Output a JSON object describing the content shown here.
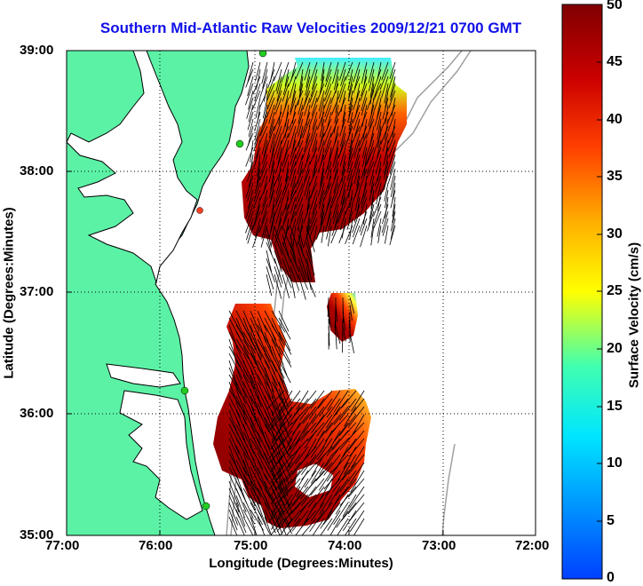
{
  "title": "Southern Mid-Atlantic Raw Velocities 2009/12/21 0700 GMT",
  "x_axis": {
    "label": "Longitude (Degrees:Minutes)",
    "ticks": [
      "77:00",
      "76:00",
      "75:00",
      "74:00",
      "73:00",
      "72:00"
    ]
  },
  "y_axis": {
    "label": "Latitude (Degrees:Minutes)",
    "ticks": [
      "39:00",
      "38:00",
      "37:00",
      "36:00",
      "35:00"
    ]
  },
  "colorbar": {
    "label": "Surface Velocity (cm/s)",
    "ticks": [
      "50",
      "45",
      "40",
      "35",
      "30",
      "25",
      "20",
      "15",
      "10",
      "5",
      "0"
    ],
    "range": [
      0,
      50
    ],
    "colormap": "jet"
  },
  "colors": {
    "title": "#1010e8",
    "land": "#5cf2a6",
    "coastline": "#000000",
    "bathymetry": "#a0a0a0",
    "stations": "#22cc22"
  },
  "map": {
    "lon_range": [
      "77:00",
      "72:00"
    ],
    "lat_range": [
      "35:00",
      "39:00"
    ],
    "grid": "dotted"
  }
}
